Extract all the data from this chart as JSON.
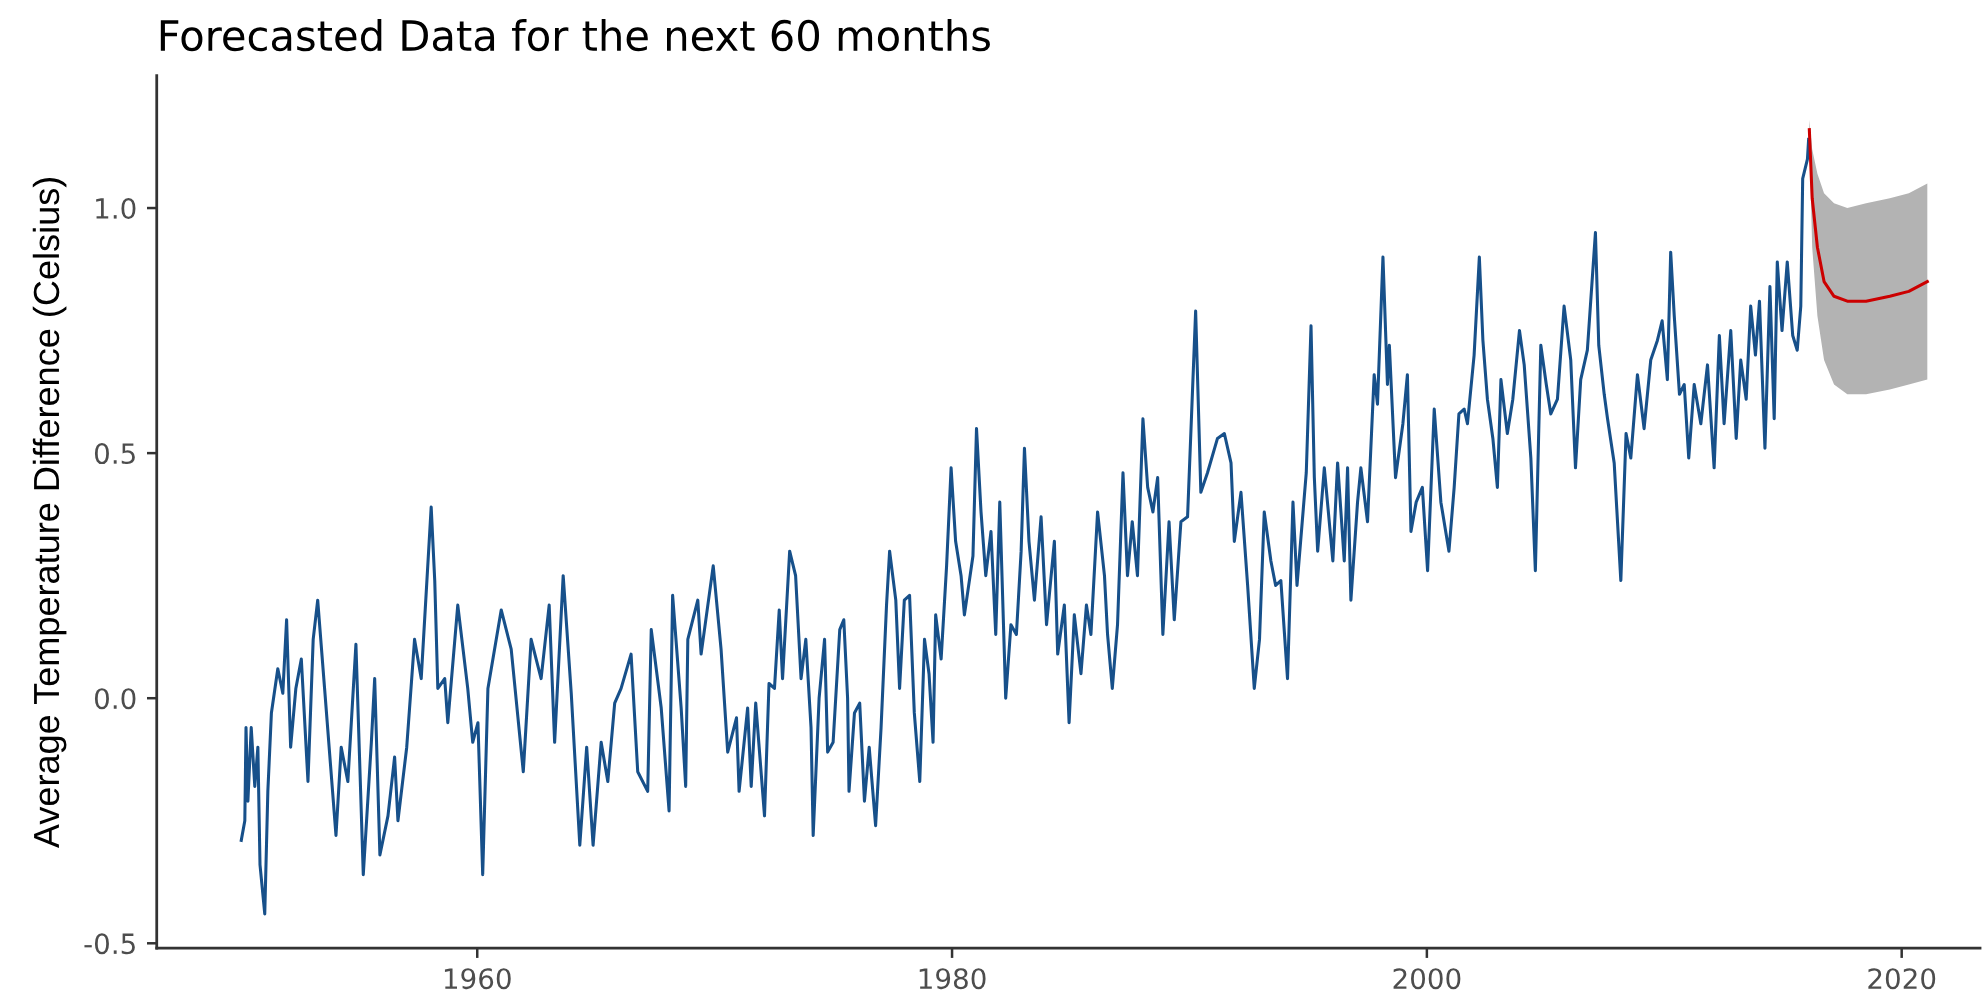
{
  "chart_data": {
    "type": "line",
    "title": "Forecasted Data for the next 60 months",
    "ylabel": "Average Temperature Difference (Celsius)",
    "xlim": [
      1946.5,
      2023.3
    ],
    "ylim": [
      -0.51,
      1.27
    ],
    "xticks": [
      1960,
      1980,
      2000,
      2020
    ],
    "yticks": [
      {
        "value": -0.5,
        "label": "-0.5"
      },
      {
        "value": 0,
        "label": "0.0"
      },
      {
        "value": 0.5,
        "label": "0.5"
      },
      {
        "value": 1,
        "label": "1.0"
      }
    ],
    "grid": false,
    "line_style": "solid",
    "marker": "none",
    "series": [
      {
        "color": "#17508a",
        "x": [
          1950.06,
          1950.21,
          1950.26,
          1950.34,
          1950.48,
          1950.63,
          1950.76,
          1950.85,
          1951.05,
          1951.18,
          1951.33,
          1951.6,
          1951.81,
          1951.97,
          1952.14,
          1952.36,
          1952.59,
          1952.87,
          1953.09,
          1953.28,
          1953.57,
          1954.05,
          1954.27,
          1954.55,
          1954.89,
          1955.2,
          1955.54,
          1955.68,
          1955.9,
          1956.24,
          1956.52,
          1956.66,
          1957.03,
          1957.36,
          1957.64,
          1958.06,
          1958.21,
          1958.34,
          1958.63,
          1958.76,
          1959.18,
          1959.6,
          1959.81,
          1960.03,
          1960.23,
          1960.45,
          1961.01,
          1961.43,
          1961.94,
          1962.27,
          1962.69,
          1963.03,
          1963.26,
          1963.62,
          1963.96,
          1964.32,
          1964.61,
          1964.88,
          1965.22,
          1965.5,
          1965.79,
          1966.06,
          1966.48,
          1966.76,
          1967.18,
          1967.33,
          1967.75,
          1968.08,
          1968.23,
          1968.59,
          1968.78,
          1968.87,
          1969.29,
          1969.43,
          1969.94,
          1970.27,
          1970.55,
          1970.92,
          1971.03,
          1971.39,
          1971.54,
          1971.73,
          1972.1,
          1972.29,
          1972.52,
          1972.72,
          1972.86,
          1973.16,
          1973.41,
          1973.64,
          1973.84,
          1974.06,
          1974.15,
          1974.4,
          1974.63,
          1974.76,
          1974.99,
          1975.27,
          1975.44,
          1975.6,
          1975.66,
          1975.89,
          1976.11,
          1976.31,
          1976.51,
          1976.78,
          1977.01,
          1977.24,
          1977.37,
          1977.63,
          1977.79,
          1977.99,
          1978.21,
          1978.41,
          1978.64,
          1978.84,
          1979.03,
          1979.2,
          1979.31,
          1979.54,
          1979.77,
          1979.96,
          1980.15,
          1980.38,
          1980.52,
          1980.88,
          1981.03,
          1981.22,
          1981.42,
          1981.64,
          1981.84,
          1982.01,
          1982.26,
          1982.48,
          1982.71,
          1982.91,
          1983.05,
          1983.24,
          1983.47,
          1983.75,
          1983.98,
          1984.31,
          1984.45,
          1984.73,
          1984.93,
          1985.15,
          1985.43,
          1985.66,
          1985.85,
          1986.13,
          1986.42,
          1986.55,
          1986.75,
          1986.97,
          1987.2,
          1987.39,
          1987.59,
          1987.81,
          1988.04,
          1988.24,
          1988.46,
          1988.66,
          1988.88,
          1989.14,
          1989.36,
          1989.64,
          1989.92,
          1990.26,
          1990.48,
          1990.76,
          1991.18,
          1991.47,
          1991.75,
          1991.89,
          1992.17,
          1992.45,
          1992.73,
          1992.95,
          1993.15,
          1993.43,
          1993.63,
          1993.85,
          1994.13,
          1994.36,
          1994.53,
          1994.92,
          1995.12,
          1995.26,
          1995.4,
          1995.68,
          1996.04,
          1996.24,
          1996.52,
          1996.66,
          1996.8,
          1997.08,
          1997.22,
          1997.5,
          1997.78,
          1997.92,
          1998.15,
          1998.34,
          1998.42,
          1998.68,
          1998.99,
          1999.18,
          1999.33,
          1999.55,
          1999.81,
          2000.03,
          2000.31,
          2000.59,
          2000.93,
          2001.15,
          2001.35,
          2001.57,
          2001.71,
          2001.99,
          2002.21,
          2002.36,
          2002.55,
          2002.78,
          2002.97,
          2003.12,
          2003.39,
          2003.62,
          2003.9,
          2004.1,
          2004.38,
          2004.57,
          2004.8,
          2005.03,
          2005.22,
          2005.5,
          2005.78,
          2006.06,
          2006.26,
          2006.48,
          2006.76,
          2007.1,
          2007.24,
          2007.47,
          2007.61,
          2007.89,
          2008.17,
          2008.39,
          2008.59,
          2008.87,
          2009.15,
          2009.43,
          2009.71,
          2009.91,
          2010.13,
          2010.27,
          2010.42,
          2010.64,
          2010.84,
          2011.03,
          2011.26,
          2011.54,
          2011.82,
          2012.1,
          2012.32,
          2012.52,
          2012.8,
          2013.03,
          2013.22,
          2013.45,
          2013.64,
          2013.84,
          2014.01,
          2014.24,
          2014.45,
          2014.63,
          2014.76,
          2014.96,
          2015.18,
          2015.41,
          2015.6,
          2015.75,
          2015.83,
          2016.03,
          2016.08
        ],
        "values": [
          -0.29,
          -0.25,
          -0.06,
          -0.21,
          -0.06,
          -0.18,
          -0.1,
          -0.34,
          -0.44,
          -0.19,
          -0.03,
          0.06,
          0.01,
          0.16,
          -0.1,
          0.02,
          0.08,
          -0.17,
          0.12,
          0.2,
          0.02,
          -0.28,
          -0.1,
          -0.17,
          0.11,
          -0.36,
          -0.09,
          0.04,
          -0.32,
          -0.24,
          -0.12,
          -0.25,
          -0.1,
          0.12,
          0.04,
          0.39,
          0.24,
          0.02,
          0.04,
          -0.05,
          0.19,
          0.02,
          -0.09,
          -0.05,
          -0.36,
          0.02,
          0.18,
          0.1,
          -0.15,
          0.12,
          0.04,
          0.19,
          -0.09,
          0.25,
          0.01,
          -0.3,
          -0.1,
          -0.3,
          -0.09,
          -0.17,
          -0.01,
          0.02,
          0.09,
          -0.15,
          -0.19,
          0.14,
          -0.02,
          -0.23,
          0.21,
          -0.02,
          -0.18,
          0.12,
          0.2,
          0.09,
          0.27,
          0.1,
          -0.11,
          -0.04,
          -0.19,
          -0.02,
          -0.18,
          -0.01,
          -0.24,
          0.03,
          0.02,
          0.18,
          0.04,
          0.3,
          0.25,
          0.04,
          0.12,
          -0.06,
          -0.28,
          0,
          0.12,
          -0.11,
          -0.09,
          0.14,
          0.16,
          0,
          -0.19,
          -0.03,
          -0.01,
          -0.21,
          -0.1,
          -0.26,
          -0.06,
          0.19,
          0.3,
          0.2,
          0.02,
          0.2,
          0.21,
          -0.03,
          -0.17,
          0.12,
          0.05,
          -0.09,
          0.17,
          0.08,
          0.27,
          0.47,
          0.32,
          0.25,
          0.17,
          0.29,
          0.55,
          0.38,
          0.25,
          0.34,
          0.13,
          0.4,
          0,
          0.15,
          0.13,
          0.3,
          0.51,
          0.32,
          0.2,
          0.37,
          0.15,
          0.32,
          0.09,
          0.19,
          -0.05,
          0.17,
          0.05,
          0.19,
          0.13,
          0.38,
          0.25,
          0.13,
          0.02,
          0.15,
          0.46,
          0.25,
          0.36,
          0.25,
          0.57,
          0.43,
          0.38,
          0.45,
          0.13,
          0.36,
          0.16,
          0.36,
          0.37,
          0.79,
          0.42,
          0.46,
          0.53,
          0.54,
          0.48,
          0.32,
          0.42,
          0.23,
          0.02,
          0.12,
          0.38,
          0.28,
          0.23,
          0.24,
          0.04,
          0.4,
          0.23,
          0.46,
          0.76,
          0.45,
          0.3,
          0.47,
          0.28,
          0.48,
          0.28,
          0.47,
          0.2,
          0.4,
          0.47,
          0.36,
          0.66,
          0.6,
          0.9,
          0.64,
          0.72,
          0.45,
          0.56,
          0.66,
          0.34,
          0.4,
          0.43,
          0.26,
          0.59,
          0.4,
          0.3,
          0.43,
          0.58,
          0.59,
          0.56,
          0.7,
          0.9,
          0.73,
          0.61,
          0.53,
          0.43,
          0.65,
          0.54,
          0.61,
          0.75,
          0.68,
          0.49,
          0.26,
          0.72,
          0.64,
          0.58,
          0.61,
          0.8,
          0.69,
          0.47,
          0.65,
          0.71,
          0.95,
          0.72,
          0.62,
          0.57,
          0.48,
          0.24,
          0.54,
          0.49,
          0.66,
          0.55,
          0.69,
          0.73,
          0.77,
          0.65,
          0.91,
          0.78,
          0.62,
          0.64,
          0.49,
          0.64,
          0.56,
          0.68,
          0.47,
          0.74,
          0.56,
          0.75,
          0.53,
          0.69,
          0.61,
          0.8,
          0.7,
          0.81,
          0.51,
          0.84,
          0.57,
          0.89,
          0.75,
          0.89,
          0.74,
          0.71,
          0.8,
          1.06,
          1.1,
          1.14
        ]
      },
      {
        "color": "#cc0000",
        "x": [
          2016.11,
          2016.23,
          2016.45,
          2016.73,
          2017.15,
          2017.71,
          2018.5,
          2019.5,
          2020.3,
          2021.08
        ],
        "values": [
          1.16,
          1.02,
          0.92,
          0.85,
          0.82,
          0.81,
          0.81,
          0.82,
          0.83,
          0.85
        ],
        "lower": [
          1.14,
          0.92,
          0.78,
          0.69,
          0.64,
          0.62,
          0.62,
          0.63,
          0.64,
          0.65
        ],
        "upper": [
          1.18,
          1.12,
          1.07,
          1.03,
          1.01,
          1.0,
          1.01,
          1.02,
          1.03,
          1.05
        ]
      }
    ]
  }
}
